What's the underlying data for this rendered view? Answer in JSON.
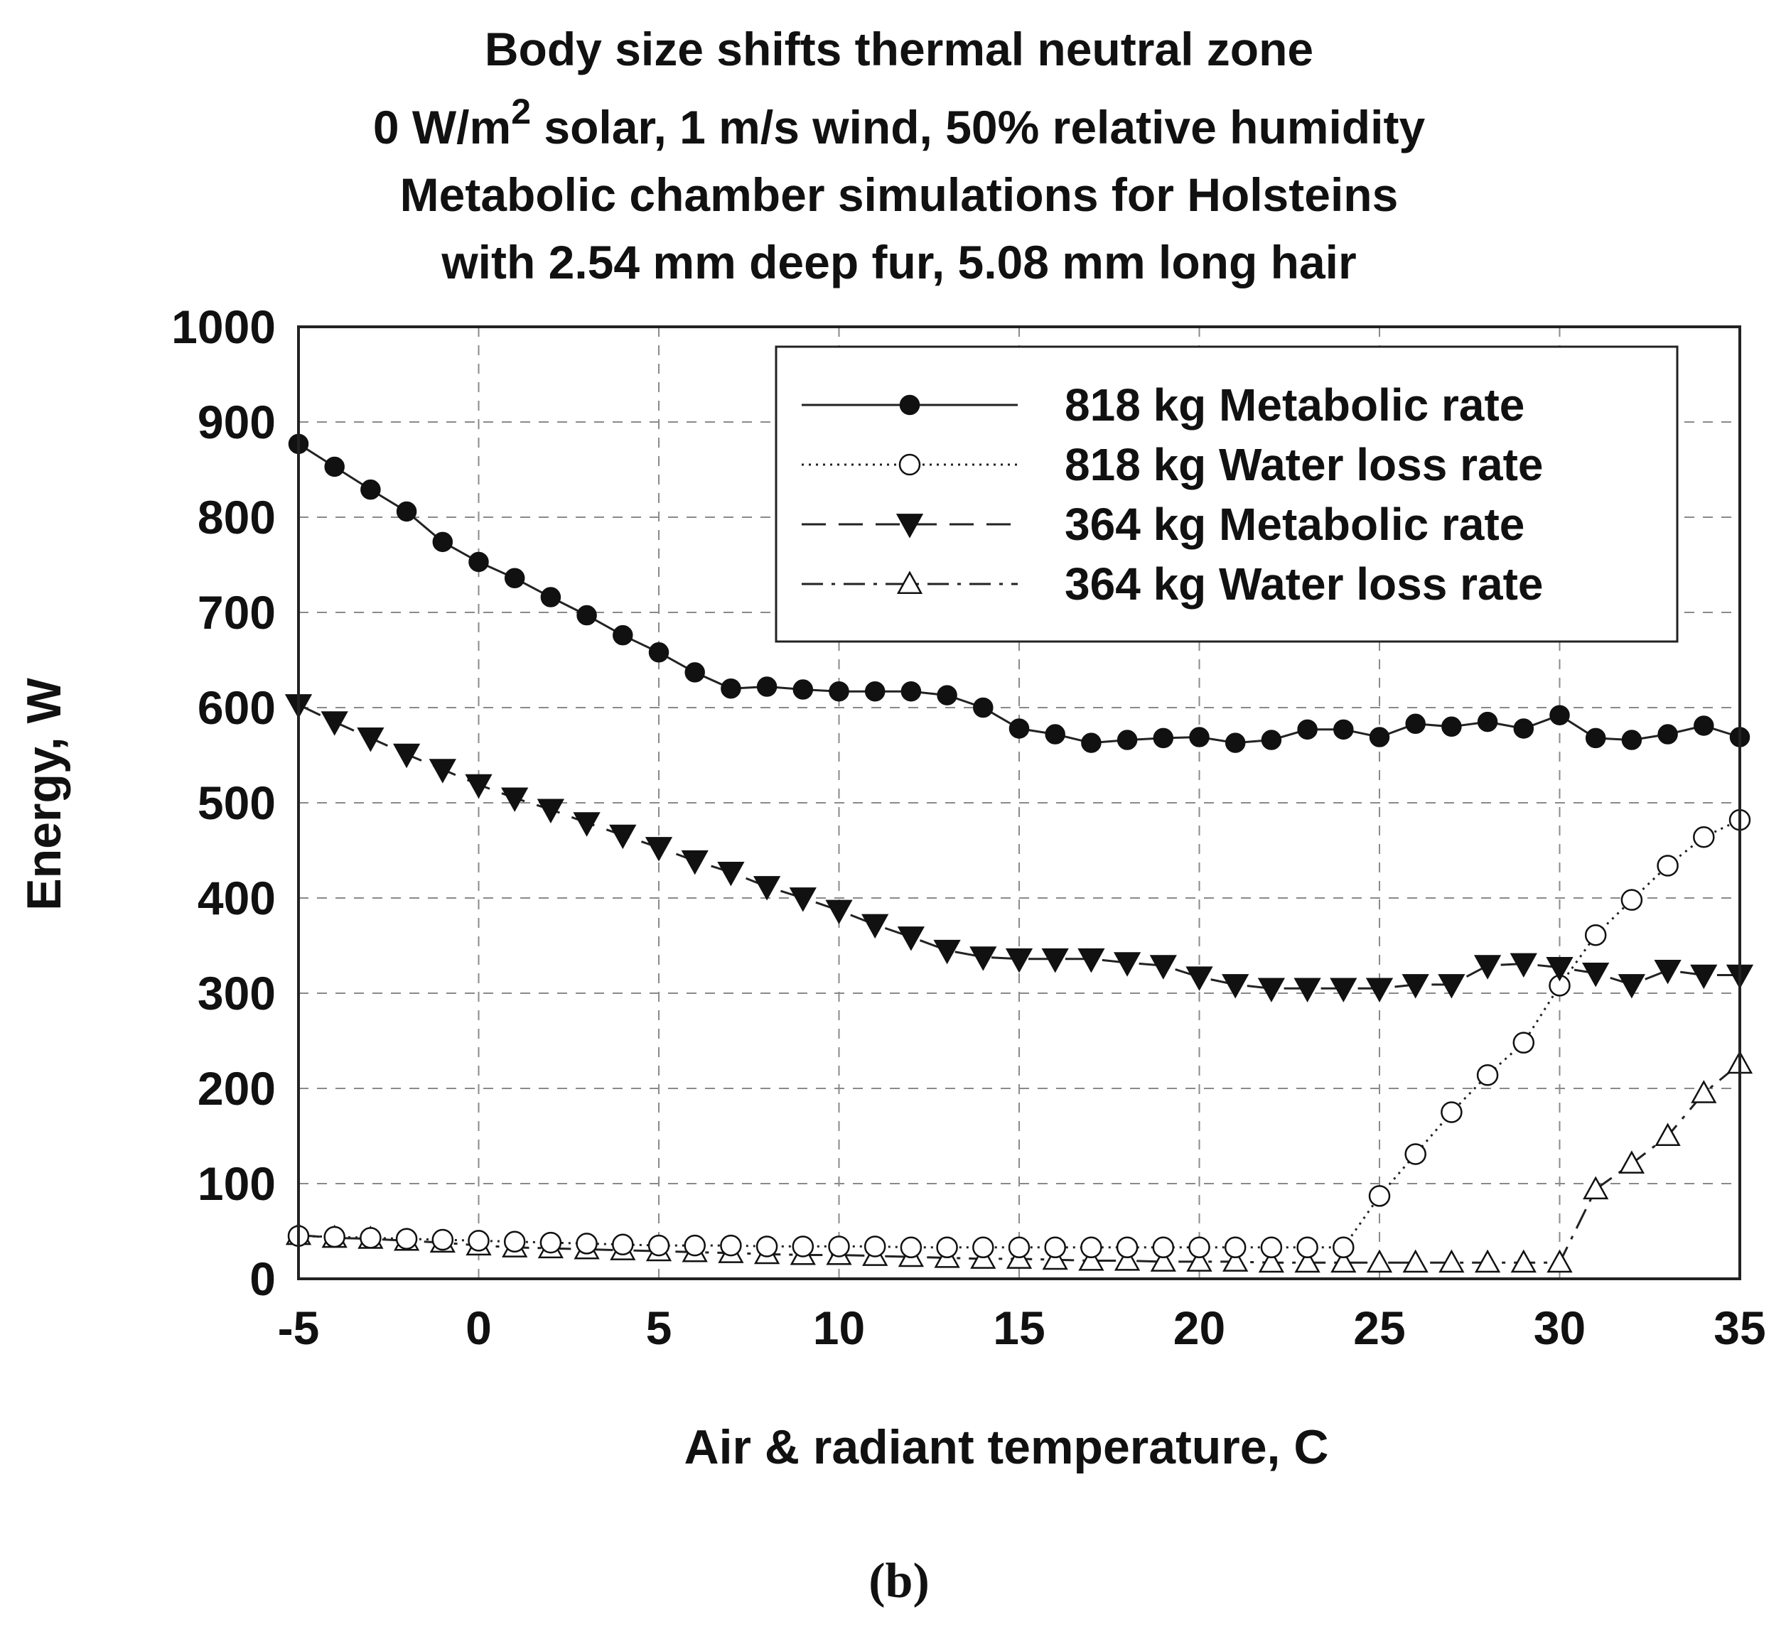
{
  "panel_label": "(b)",
  "chart_data": {
    "type": "line",
    "title_lines": [
      "Body size shifts thermal neutral zone",
      "0 W/m",
      "solar, 1 m/s wind, 50% relative humidity",
      "Metabolic chamber simulations for Holsteins",
      "with 2.54 mm deep fur, 5.08 mm long hair"
    ],
    "title_superscript": "2",
    "xlabel": "Air & radiant temperature, C",
    "ylabel": "Energy, W",
    "xlim": [
      -5,
      35
    ],
    "ylim": [
      0,
      1000
    ],
    "xticks": [
      -5,
      0,
      5,
      10,
      15,
      20,
      25,
      30,
      35
    ],
    "yticks": [
      0,
      100,
      200,
      300,
      400,
      500,
      600,
      700,
      800,
      900,
      1000
    ],
    "grid": true,
    "legend_position": "top-right",
    "x": [
      -5,
      -4,
      -3,
      -2,
      -1,
      0,
      1,
      2,
      3,
      4,
      5,
      6,
      7,
      8,
      9,
      10,
      11,
      12,
      13,
      14,
      15,
      16,
      17,
      18,
      19,
      20,
      21,
      22,
      23,
      24,
      25,
      26,
      27,
      28,
      29,
      30,
      31,
      32,
      33,
      34,
      35
    ],
    "series": [
      {
        "name": "818 kg Metabolic rate",
        "marker": "filled-circle",
        "line": "solid",
        "values": [
          877,
          853,
          829,
          806,
          774,
          753,
          736,
          716,
          697,
          676,
          658,
          637,
          620,
          622,
          619,
          617,
          617,
          617,
          613,
          600,
          578,
          572,
          563,
          566,
          568,
          569,
          563,
          566,
          577,
          577,
          569,
          583,
          580,
          585,
          578,
          592,
          568,
          566,
          572,
          581,
          569
        ]
      },
      {
        "name": "818 kg Water loss rate",
        "marker": "open-circle",
        "line": "dotted",
        "values": [
          45,
          44,
          43,
          42,
          41,
          40,
          39,
          38,
          37,
          36,
          35,
          35,
          35,
          34,
          34,
          34,
          34,
          33,
          33,
          33,
          33,
          33,
          33,
          33,
          33,
          33,
          33,
          33,
          33,
          33,
          87,
          131,
          175,
          214,
          248,
          308,
          361,
          398,
          434,
          464,
          482
        ]
      },
      {
        "name": "364 kg Metabolic rate",
        "marker": "filled-down-triangle",
        "line": "dashed",
        "values": [
          603,
          585,
          568,
          551,
          535,
          519,
          505,
          493,
          479,
          466,
          453,
          439,
          427,
          412,
          400,
          387,
          372,
          359,
          345,
          338,
          336,
          336,
          336,
          332,
          329,
          317,
          309,
          305,
          305,
          305,
          305,
          309,
          309,
          329,
          331,
          327,
          321,
          309,
          324,
          319,
          319
        ]
      },
      {
        "name": "364 kg Water loss rate",
        "marker": "open-up-triangle",
        "line": "dash-dot",
        "values": [
          46,
          43,
          42,
          40,
          38,
          35,
          33,
          32,
          31,
          30,
          29,
          28,
          27,
          26,
          25,
          25,
          24,
          23,
          22,
          21,
          21,
          20,
          19,
          19,
          18,
          18,
          18,
          17,
          17,
          17,
          17,
          17,
          17,
          17,
          17,
          17,
          94,
          121,
          150,
          195,
          226
        ]
      }
    ]
  }
}
